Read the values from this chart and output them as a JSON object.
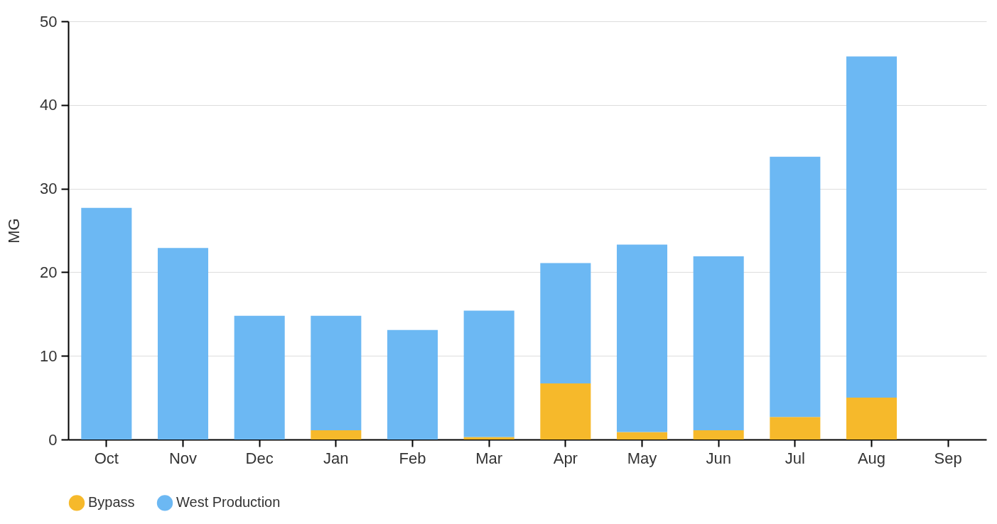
{
  "chart_data": {
    "type": "bar",
    "stacked": true,
    "ylabel": "MG",
    "categories": [
      "Oct",
      "Nov",
      "Dec",
      "Jan",
      "Feb",
      "Mar",
      "Apr",
      "May",
      "Jun",
      "Jul",
      "Aug",
      "Sep"
    ],
    "series": [
      {
        "name": "Bypass",
        "color": "#f6b92b",
        "values": [
          0,
          0,
          0,
          1.1,
          0,
          0.3,
          6.7,
          0.9,
          1.1,
          2.7,
          5.0,
          null
        ]
      },
      {
        "name": "West Production",
        "color": "#6cb8f3",
        "values": [
          27.7,
          22.9,
          14.8,
          13.7,
          13.1,
          15.1,
          14.4,
          22.4,
          20.8,
          31.1,
          40.8,
          null
        ]
      }
    ],
    "ylim": [
      0,
      50
    ],
    "yticks": [
      0,
      10,
      20,
      30,
      40,
      50
    ],
    "grid": "y",
    "legend": "bottom"
  }
}
